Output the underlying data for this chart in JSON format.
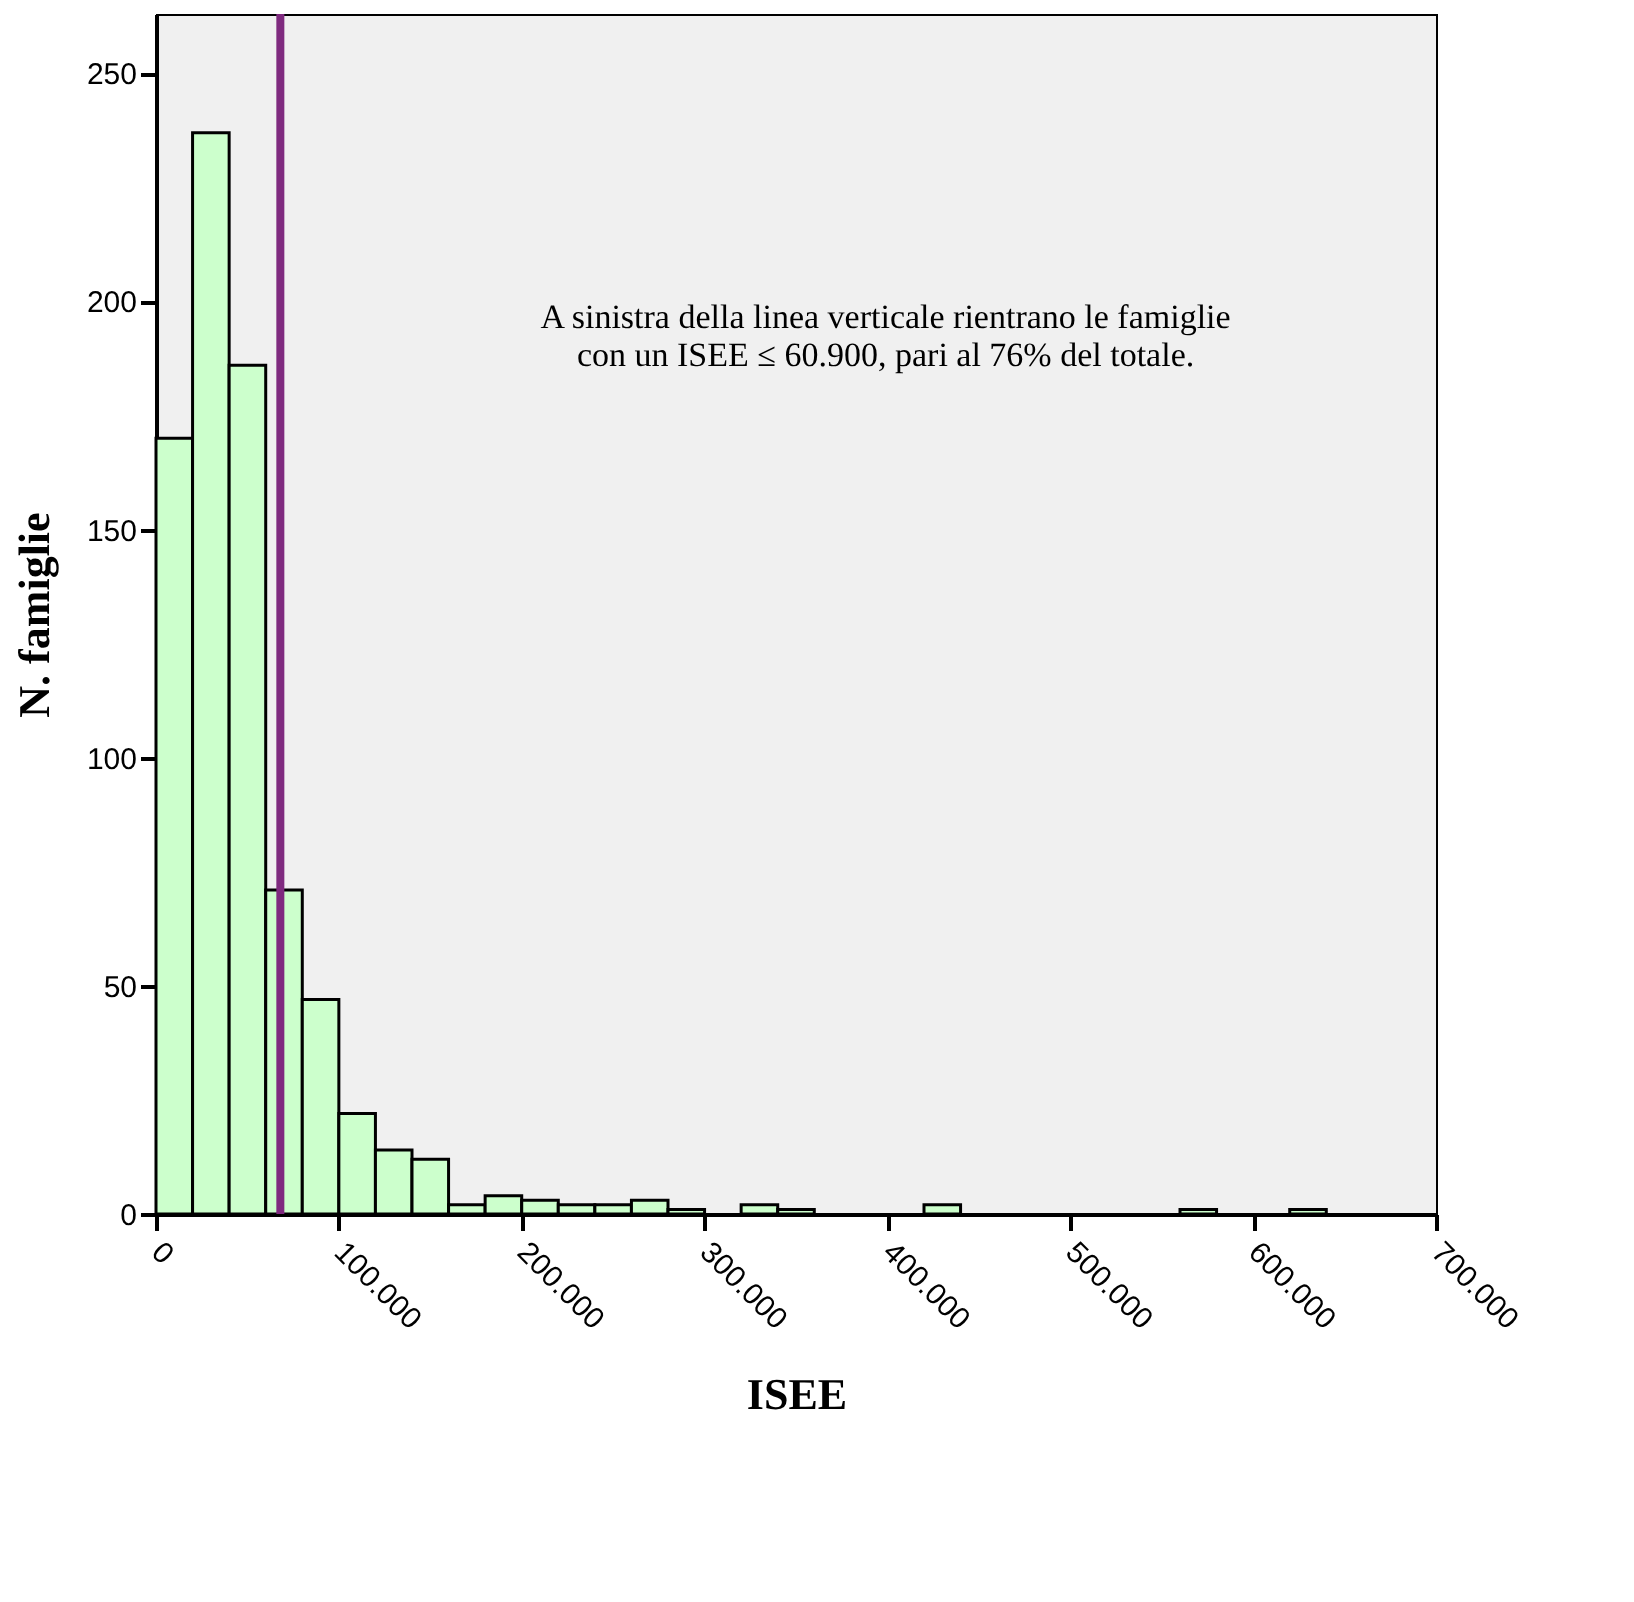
{
  "chart_data": {
    "type": "histogram",
    "xlabel": "ISEE",
    "ylabel": "N. famiglie",
    "bins": [
      0,
      20000,
      40000,
      60000,
      80000,
      100000,
      120000,
      140000,
      160000,
      180000,
      200000,
      220000,
      240000,
      260000,
      280000,
      300000,
      320000,
      340000,
      360000,
      380000,
      400000,
      420000,
      440000,
      460000,
      480000,
      500000,
      520000,
      540000,
      560000,
      580000,
      600000,
      620000,
      640000
    ],
    "values": [
      170,
      237,
      186,
      71,
      47,
      22,
      14,
      12,
      2,
      4,
      3,
      2,
      2,
      3,
      1,
      0,
      2,
      1,
      0,
      0,
      0,
      2,
      0,
      0,
      0,
      0,
      0,
      0,
      1,
      0,
      0,
      1
    ],
    "color": "#ccffcc",
    "xlim": [
      0,
      700000
    ],
    "xticks": [
      0,
      {
        "value": 100000,
        "label": "100.000"
      },
      {
        "value": 200000,
        "label": "200.000"
      },
      {
        "value": 300000,
        "label": "300.000"
      },
      {
        "value": 400000,
        "label": "400.000"
      },
      {
        "value": 500000,
        "label": "500.000"
      },
      {
        "value": 600000,
        "label": "600.000"
      },
      {
        "value": 700000,
        "label": "700.000"
      }
    ],
    "ylim": [
      0,
      263
    ],
    "yticks": [
      0,
      50,
      100,
      150,
      200,
      250
    ],
    "ref_lines": [
      {
        "axis": "x",
        "value": 68000,
        "color": "#7f2a7f"
      }
    ],
    "annotations": [
      "A sinistra della linea verticale rientrano le famiglie\ncon un ISEE ≤ 60.900, pari al 76% del totale."
    ],
    "grid": false
  }
}
